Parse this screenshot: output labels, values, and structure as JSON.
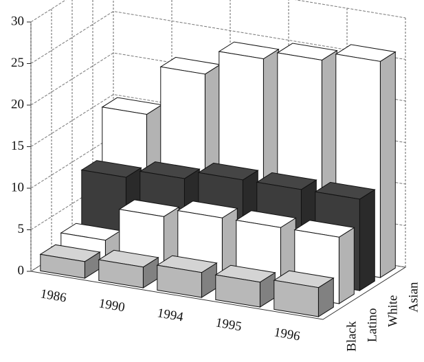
{
  "chart_data": {
    "type": "bar3d",
    "categories": [
      "1986",
      "1990",
      "1994",
      "1995",
      "1996"
    ],
    "series": [
      {
        "name": "Black",
        "color": "#b8b8b8",
        "values": [
          2,
          2.5,
          3,
          3,
          3.5
        ]
      },
      {
        "name": "Latino",
        "color": "#ffffff",
        "values": [
          3,
          7,
          8,
          8,
          8
        ]
      },
      {
        "name": "White",
        "color": "#3c3c3c",
        "values": [
          9,
          10,
          11,
          11,
          11
        ]
      },
      {
        "name": "Asian",
        "color": "#ffffff",
        "values": [
          15,
          21,
          24,
          25,
          26
        ]
      }
    ],
    "ylim": [
      0,
      30
    ],
    "yticks": [
      0,
      5,
      10,
      15,
      20,
      25,
      30
    ],
    "grid": true
  }
}
